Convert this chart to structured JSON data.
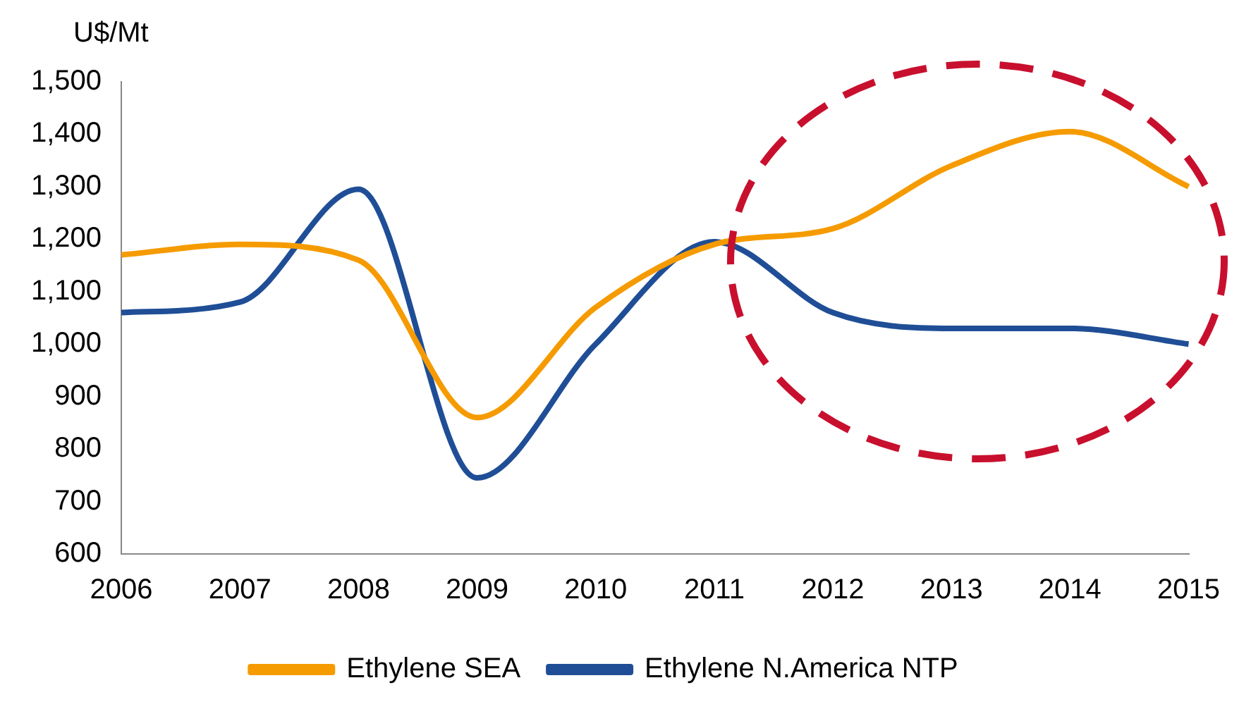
{
  "chart_data": {
    "type": "line",
    "ylabel": "U$/Mt",
    "categories": [
      "2006",
      "2007",
      "2008",
      "2009",
      "2010",
      "2011",
      "2012",
      "2013",
      "2014",
      "2015"
    ],
    "series": [
      {
        "name": "Ethylene SEA",
        "color": "#f59b00",
        "values": [
          1170,
          1190,
          1160,
          860,
          1070,
          1190,
          1220,
          1340,
          1405,
          1300
        ]
      },
      {
        "name": "Ethylene N.America NTP",
        "color": "#1f4e96",
        "values": [
          1060,
          1080,
          1295,
          745,
          1000,
          1195,
          1060,
          1030,
          1030,
          1000
        ]
      }
    ],
    "ylim": [
      600,
      1500
    ],
    "yticks": [
      {
        "value": 600,
        "label": "600"
      },
      {
        "value": 700,
        "label": "700"
      },
      {
        "value": 800,
        "label": "800"
      },
      {
        "value": 900,
        "label": "900"
      },
      {
        "value": 1000,
        "label": "1,000"
      },
      {
        "value": 1100,
        "label": "1,100"
      },
      {
        "value": 1200,
        "label": "1,200"
      },
      {
        "value": 1300,
        "label": "1,300"
      },
      {
        "value": 1400,
        "label": "1,400"
      },
      {
        "value": 1500,
        "label": "1,500"
      }
    ],
    "grid": false,
    "legend": "bottom",
    "marker": "none",
    "line_style": "solid"
  }
}
